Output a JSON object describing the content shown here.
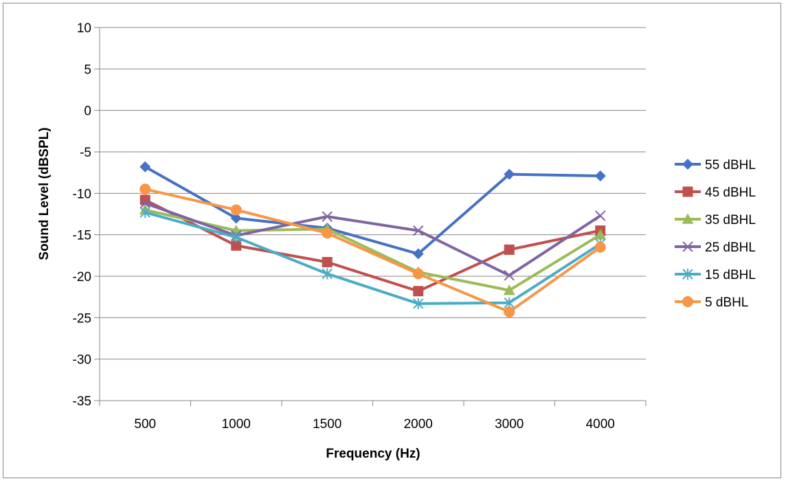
{
  "chart_data": {
    "type": "line",
    "title": "",
    "xlabel": "Frequency (Hz)",
    "ylabel": "Sound Level (dBSPL)",
    "categories": [
      "500",
      "1000",
      "1500",
      "2000",
      "3000",
      "4000"
    ],
    "yticks": [
      "10",
      "5",
      "0",
      "-5",
      "-10",
      "-15",
      "-20",
      "-25",
      "-30",
      "-35"
    ],
    "ylim": [
      -35,
      10
    ],
    "grid": "horizontal",
    "legend_position": "right",
    "series": [
      {
        "name": "55 dBHL",
        "color": "#4472C4",
        "marker": "diamond",
        "values": [
          -6.8,
          -13.0,
          -14.2,
          -17.3,
          -7.7,
          -7.9
        ]
      },
      {
        "name": "45 dBHL",
        "color": "#C0504D",
        "marker": "square",
        "values": [
          -10.8,
          -16.3,
          -18.3,
          -21.8,
          -16.8,
          -14.5
        ]
      },
      {
        "name": "35 dBHL",
        "color": "#9BBB59",
        "marker": "triangle",
        "values": [
          -12.0,
          -14.5,
          -14.3,
          -19.5,
          -21.7,
          -15.0
        ]
      },
      {
        "name": "25 dBHL",
        "color": "#8064A2",
        "marker": "x",
        "values": [
          -11.2,
          -15.1,
          -12.8,
          -14.5,
          -19.9,
          -12.7
        ]
      },
      {
        "name": "15 dBHL",
        "color": "#4BACC6",
        "marker": "star",
        "values": [
          -12.3,
          -15.3,
          -19.7,
          -23.3,
          -23.2,
          -16.1
        ]
      },
      {
        "name": "5 dBHL",
        "color": "#F79646",
        "marker": "circle",
        "values": [
          -9.5,
          -12.0,
          -14.8,
          -19.7,
          -24.3,
          -16.5
        ]
      }
    ]
  }
}
